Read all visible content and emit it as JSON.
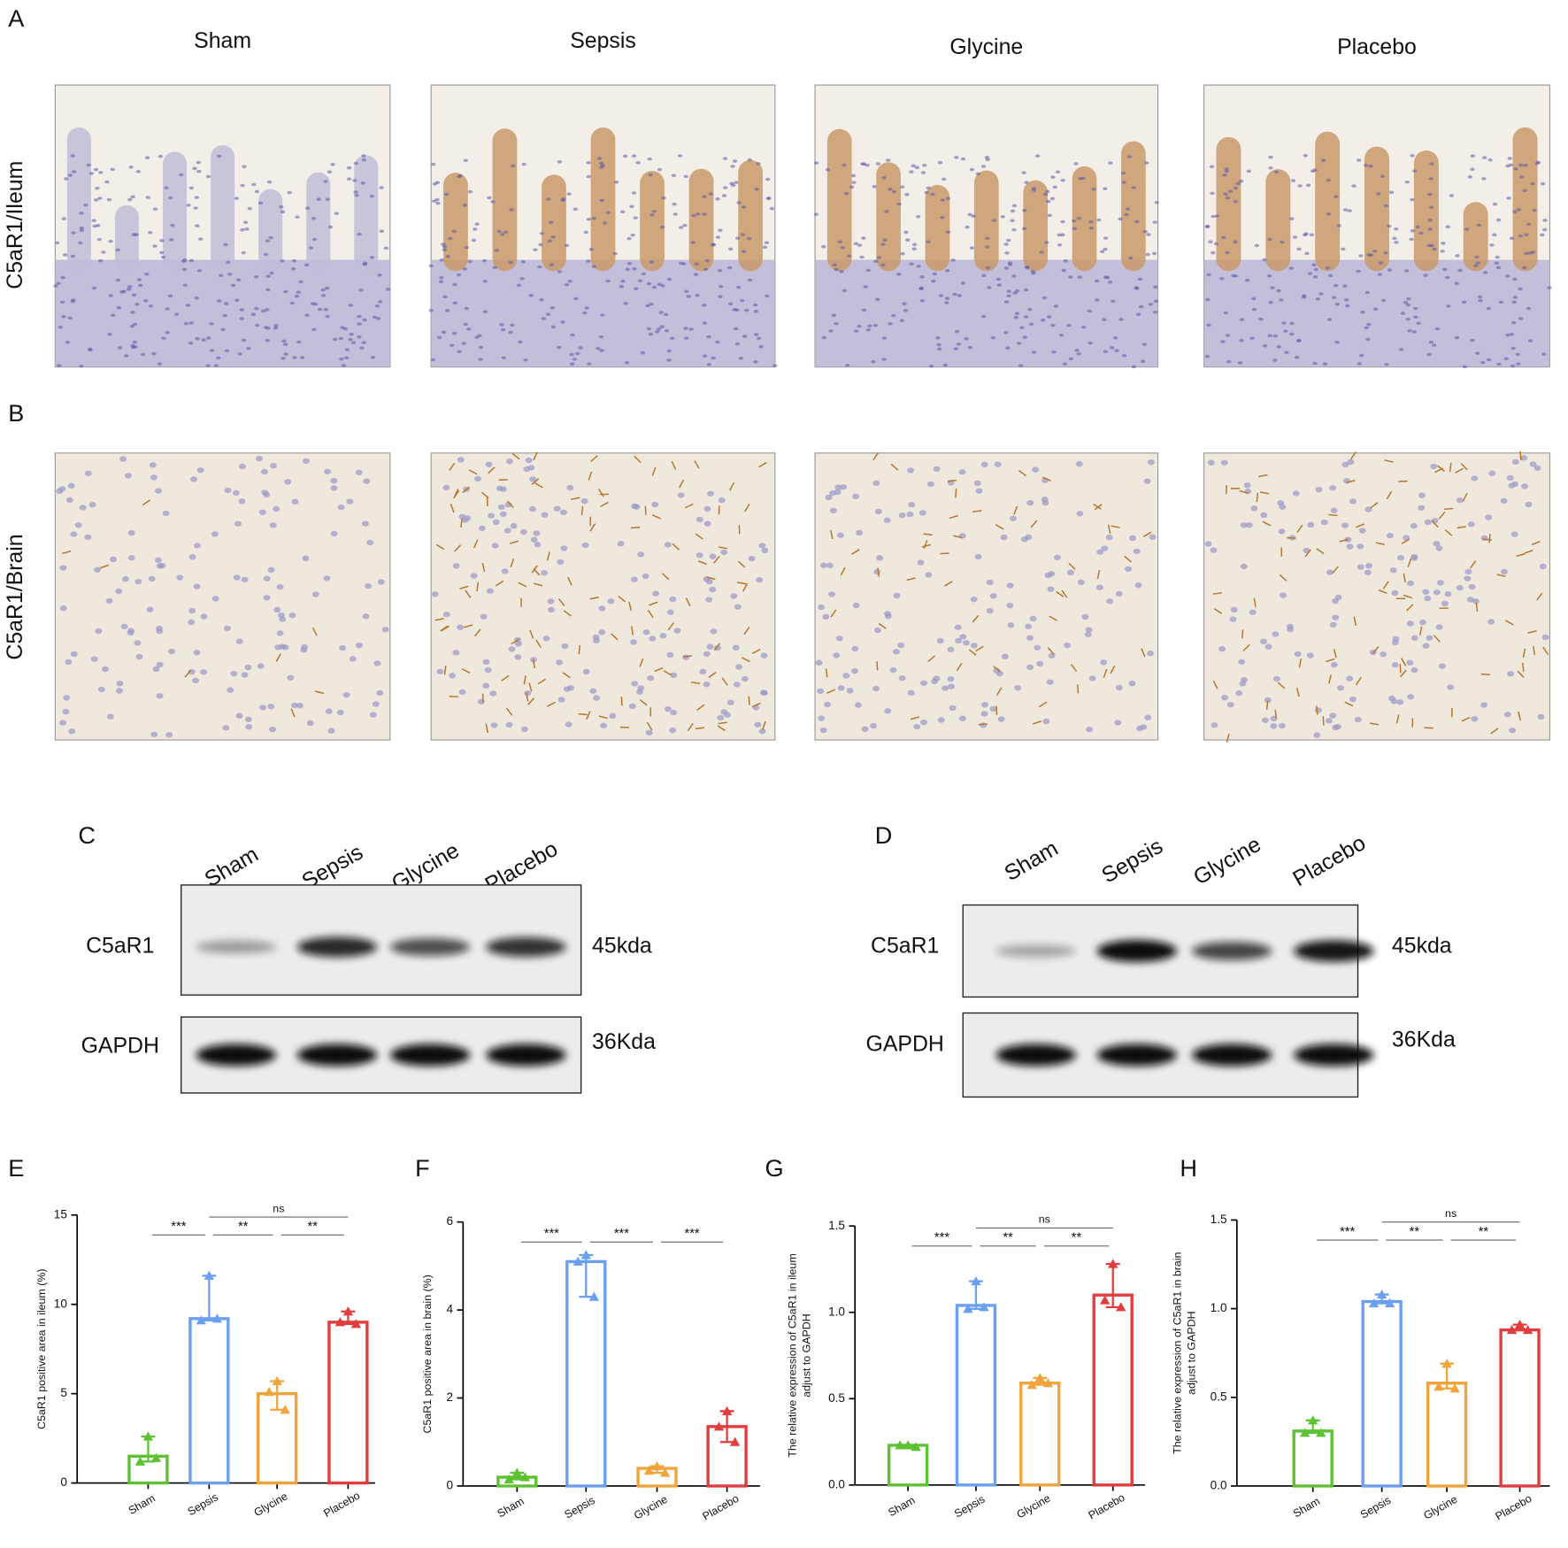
{
  "figure": {
    "panel_a": {
      "letter": "A",
      "row_label": "C5aR1/Ileum"
    },
    "panel_b": {
      "letter": "B",
      "row_label": "C5aR1/Brain"
    },
    "groups": [
      "Sham",
      "Sepsis",
      "Glycine",
      "Placebo"
    ],
    "blots": [
      {
        "letter": "C",
        "lanes": [
          "Sham",
          "Sepsis",
          "Glycine",
          "Placebo"
        ],
        "rows": [
          {
            "name": "C5aR1",
            "size": "45kda"
          },
          {
            "name": "GAPDH",
            "size": "36Kda"
          }
        ]
      },
      {
        "letter": "D",
        "lanes": [
          "Sham",
          "Sepsis",
          "Glycine",
          "Placebo"
        ],
        "rows": [
          {
            "name": "C5aR1",
            "size": "45kda"
          },
          {
            "name": "GAPDH",
            "size": "36Kda"
          }
        ]
      }
    ]
  },
  "chart_data": [
    {
      "type": "bar",
      "letter": "E",
      "ylabel": [
        "C5aR1 positive area in ileum (%)"
      ],
      "categories": [
        "Sham",
        "Sepsis",
        "Glycine",
        "Placebo"
      ],
      "colors": [
        "#5cc232",
        "#6a9ff2",
        "#f2a43a",
        "#e23c3c"
      ],
      "values": [
        1.5,
        9.2,
        5.0,
        9.0
      ],
      "points": [
        [
          2.6,
          1.2,
          1.4
        ],
        [
          11.6,
          9.1,
          9.2
        ],
        [
          5.7,
          5.1,
          4.1
        ],
        [
          9.6,
          9.0,
          8.9
        ]
      ],
      "ylim": [
        0,
        15
      ],
      "yticks": [
        0,
        5,
        10,
        15
      ],
      "significance": [
        {
          "label": "***",
          "from": 0,
          "to": 1
        },
        {
          "label": "**",
          "from": 1,
          "to": 2
        },
        {
          "label": "**",
          "from": 2,
          "to": 3
        },
        {
          "label": "ns",
          "from": 1,
          "to": 3
        }
      ]
    },
    {
      "type": "bar",
      "letter": "F",
      "ylabel": [
        "C5aR1 positive area in brain (%)"
      ],
      "categories": [
        "Sham",
        "Sepsis",
        "Glycine",
        "Placebo"
      ],
      "colors": [
        "#5cc232",
        "#6a9ff2",
        "#f2a43a",
        "#e23c3c"
      ],
      "values": [
        0.2,
        5.1,
        0.4,
        1.35
      ],
      "points": [
        [
          0.3,
          0.15,
          0.2
        ],
        [
          5.25,
          5.1,
          4.3
        ],
        [
          0.45,
          0.35,
          0.3
        ],
        [
          1.7,
          1.35,
          1.0
        ]
      ],
      "ylim": [
        0,
        6
      ],
      "yticks": [
        0,
        2,
        4,
        6
      ],
      "significance": [
        {
          "label": "***",
          "from": 0,
          "to": 1
        },
        {
          "label": "***",
          "from": 1,
          "to": 2
        },
        {
          "label": "***",
          "from": 2,
          "to": 3
        }
      ]
    },
    {
      "type": "bar",
      "letter": "G",
      "ylabel": [
        "The relative expression of C5aR1 in ileum",
        "adjust to GAPDH"
      ],
      "categories": [
        "Sham",
        "Sepsis",
        "Glycine",
        "Placebo"
      ],
      "colors": [
        "#5cc232",
        "#6a9ff2",
        "#f2a43a",
        "#e23c3c"
      ],
      "values": [
        0.23,
        1.04,
        0.59,
        1.1
      ],
      "points": [
        [
          0.23,
          0.23,
          0.22
        ],
        [
          1.18,
          1.02,
          1.03
        ],
        [
          0.62,
          0.58,
          0.59
        ],
        [
          1.28,
          1.07,
          1.03
        ]
      ],
      "ylim": [
        0,
        1.5
      ],
      "yticks": [
        {
          "value": 0,
          "label": "0.0"
        },
        {
          "value": 0.5,
          "label": "0.5"
        },
        {
          "value": 1,
          "label": "1.0"
        },
        {
          "value": 1.5,
          "label": "1.5"
        }
      ],
      "significance": [
        {
          "label": "***",
          "from": 0,
          "to": 1
        },
        {
          "label": "**",
          "from": 1,
          "to": 2
        },
        {
          "label": "**",
          "from": 2,
          "to": 3
        },
        {
          "label": "ns",
          "from": 1,
          "to": 3
        }
      ]
    },
    {
      "type": "bar",
      "letter": "H",
      "ylabel": [
        "The relative expression of C5aR1 in brain",
        "adjust to GAPDH"
      ],
      "categories": [
        "Sham",
        "Sepsis",
        "Glycine",
        "Placebo"
      ],
      "colors": [
        "#5cc232",
        "#6a9ff2",
        "#f2a43a",
        "#e23c3c"
      ],
      "values": [
        0.31,
        1.04,
        0.58,
        0.88
      ],
      "points": [
        [
          0.37,
          0.3,
          0.3
        ],
        [
          1.08,
          1.03,
          1.03
        ],
        [
          0.69,
          0.56,
          0.55
        ],
        [
          0.91,
          0.88,
          0.88
        ]
      ],
      "ylim": [
        0,
        1.5
      ],
      "yticks": [
        {
          "value": 0,
          "label": "0.0"
        },
        {
          "value": 0.5,
          "label": "0.5"
        },
        {
          "value": 1,
          "label": "1.0"
        },
        {
          "value": 1.5,
          "label": "1.5"
        }
      ],
      "significance": [
        {
          "label": "***",
          "from": 0,
          "to": 1
        },
        {
          "label": "**",
          "from": 1,
          "to": 2
        },
        {
          "label": "**",
          "from": 2,
          "to": 3
        },
        {
          "label": "ns",
          "from": 1,
          "to": 3
        }
      ]
    }
  ]
}
